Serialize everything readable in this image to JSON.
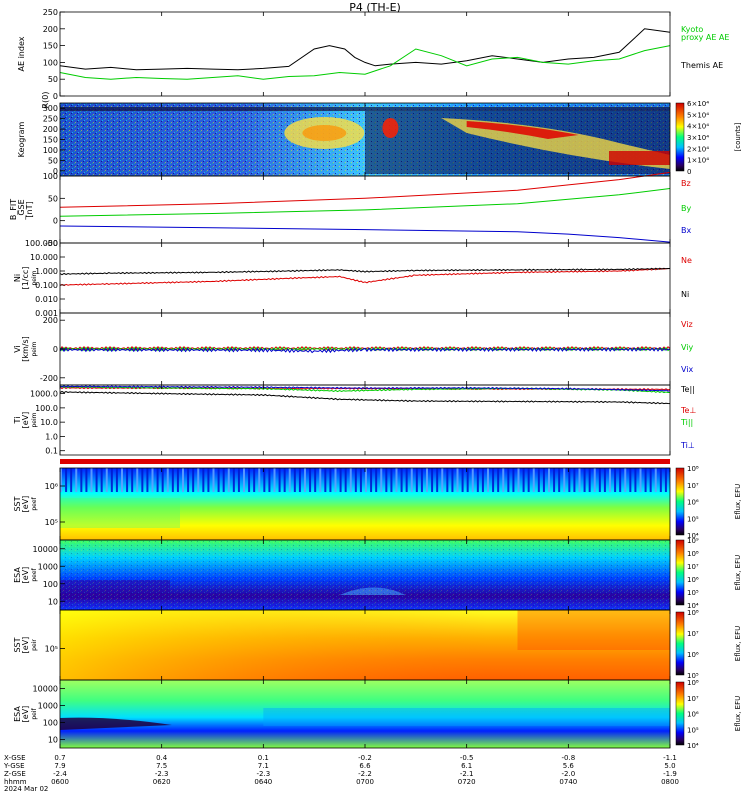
{
  "chart_data": {
    "type": "line",
    "title": "P4 (TH-E)",
    "time_axis": {
      "ticks": [
        "0600",
        "0620",
        "0640",
        "0700",
        "0720",
        "0740",
        "0800"
      ],
      "rows": [
        {
          "label": "X-GSE",
          "values": [
            "0.7",
            "0.4",
            "0.1",
            "-0.2",
            "-0.5",
            "-0.8",
            "-1.1"
          ]
        },
        {
          "label": "Y-GSE",
          "values": [
            "7.9",
            "7.5",
            "7.1",
            "6.6",
            "6.1",
            "5.6",
            "5.0"
          ]
        },
        {
          "label": "Z-GSE",
          "values": [
            "-2.4",
            "-2.3",
            "-2.3",
            "-2.2",
            "-2.1",
            "-2.0",
            "-1.9"
          ]
        },
        {
          "label": "hhmm",
          "values": [
            "0600",
            "0620",
            "0640",
            "0700",
            "0720",
            "0740",
            "0800"
          ]
        }
      ],
      "date": "2024 Mar 02"
    },
    "panels": [
      {
        "id": "ae",
        "ylabel": "AE index",
        "yticks": [
          "250",
          "200",
          "150",
          "100",
          "50",
          "0"
        ],
        "ylim": [
          0,
          250
        ],
        "series": [
          {
            "name": "Themis AE",
            "color": "#000000",
            "x": [
              0,
              5,
              10,
              15,
              20,
              25,
              30,
              35,
              40,
              45,
              50,
              53,
              56,
              58,
              60,
              62,
              65,
              70,
              75,
              80,
              85,
              90,
              95,
              100,
              105,
              110,
              115,
              120
            ],
            "y": [
              90,
              80,
              85,
              78,
              80,
              82,
              80,
              78,
              82,
              88,
              140,
              150,
              140,
              115,
              100,
              90,
              95,
              100,
              95,
              105,
              120,
              110,
              100,
              110,
              115,
              130,
              200,
              190
            ]
          },
          {
            "name": "Kyoto proxy AE",
            "color": "#00cc00",
            "x": [
              0,
              5,
              10,
              15,
              20,
              25,
              30,
              35,
              40,
              45,
              50,
              55,
              60,
              65,
              70,
              75,
              80,
              85,
              90,
              95,
              100,
              105,
              110,
              115,
              120
            ],
            "y": [
              70,
              55,
              50,
              55,
              52,
              50,
              55,
              60,
              50,
              58,
              60,
              70,
              65,
              90,
              140,
              120,
              90,
              110,
              115,
              100,
              95,
              105,
              110,
              135,
              150
            ]
          }
        ]
      },
      {
        "id": "keogram",
        "ylabel": "Keogram",
        "ylabel2": "R(0)",
        "yticks": [
          "300",
          "250",
          "200",
          "150",
          "100",
          "50",
          "0"
        ],
        "colorbar": {
          "label": "[counts]",
          "ticks": [
            "6×10⁴",
            "5×10⁴",
            "4×10⁴",
            "3×10⁴",
            "2×10⁴",
            "1×10⁴",
            "0"
          ]
        }
      },
      {
        "id": "bfield",
        "ylabel": "B_FIT\n_GSE\n[nT]",
        "yticks": [
          "100",
          "50",
          "0",
          "-50"
        ],
        "ylim": [
          -50,
          100
        ],
        "series": [
          {
            "name": "Bz",
            "color": "#dd0000",
            "x": [
              0,
              30,
              60,
              90,
              100,
              110,
              120
            ],
            "y": [
              30,
              38,
              50,
              68,
              80,
              92,
              108
            ]
          },
          {
            "name": "By",
            "color": "#00cc00",
            "x": [
              0,
              30,
              60,
              90,
              100,
              110,
              120
            ],
            "y": [
              10,
              16,
              24,
              38,
              48,
              58,
              72
            ]
          },
          {
            "name": "Bx",
            "color": "#0000cc",
            "x": [
              0,
              30,
              60,
              90,
              100,
              110,
              120
            ],
            "y": [
              -12,
              -16,
              -20,
              -25,
              -30,
              -38,
              -48
            ]
          }
        ]
      },
      {
        "id": "density",
        "ylabel": "Ni\n[1/cc]",
        "ylabel_small": "peim",
        "yticks": [
          "100.000",
          "10.000",
          "1.000",
          "0.100",
          "0.010",
          "0.001"
        ],
        "log": true,
        "ylim": [
          0.001,
          100
        ],
        "series": [
          {
            "name": "Ne",
            "color": "#dd0000",
            "x": [
              0,
              10,
              30,
              45,
              55,
              60,
              70,
              90,
              110,
              120
            ],
            "y": [
              0.1,
              0.12,
              0.18,
              0.3,
              0.4,
              0.15,
              0.5,
              0.8,
              1.0,
              1.5
            ]
          },
          {
            "name": "Ni",
            "color": "#000000",
            "x": [
              0,
              10,
              30,
              45,
              55,
              60,
              70,
              90,
              110,
              120
            ],
            "y": [
              0.6,
              0.7,
              0.8,
              1.0,
              1.2,
              0.9,
              1.1,
              1.2,
              1.3,
              1.5
            ]
          }
        ]
      },
      {
        "id": "velocity",
        "ylabel": "Vi\n[km/s]",
        "ylabel_small": "peim",
        "yticks": [
          "200",
          "0",
          "-200"
        ],
        "ylim": [
          -250,
          250
        ],
        "series": [
          {
            "name": "Viz",
            "color": "#dd0000",
            "x": [
              0,
              120
            ],
            "y": [
              5,
              5
            ]
          },
          {
            "name": "Viy",
            "color": "#00cc00",
            "x": [
              0,
              120
            ],
            "y": [
              0,
              0
            ]
          },
          {
            "name": "Vix",
            "color": "#0000cc",
            "x": [
              0,
              40,
              50,
              60,
              120
            ],
            "y": [
              -5,
              -8,
              -15,
              -5,
              -3
            ]
          }
        ]
      },
      {
        "id": "temperature",
        "ylabel": "Ti\n[eV]",
        "ylabel_small": "peim",
        "yticks": [
          "1000.0",
          "100.0",
          "10.0",
          "1.0",
          "0.1"
        ],
        "log": true,
        "ylim": [
          0.05,
          4000
        ],
        "series": [
          {
            "name": "Te||",
            "color": "#000000",
            "x": [
              0,
              20,
              40,
              55,
              70,
              90,
              110,
              120
            ],
            "y": [
              1300,
              1000,
              800,
              400,
              300,
              280,
              260,
              200
            ]
          },
          {
            "name": "Te⊥",
            "color": "#dd0000",
            "x": [
              0,
              120
            ],
            "y": [
              2500,
              2000
            ]
          },
          {
            "name": "Ti||",
            "color": "#00cc00",
            "x": [
              0,
              20,
              40,
              55,
              70,
              90,
              110,
              120
            ],
            "y": [
              3000,
              2500,
              2200,
              1500,
              2000,
              2300,
              1800,
              1200
            ]
          },
          {
            "name": "Ti⊥",
            "color": "#0000cc",
            "x": [
              0,
              40,
              60,
              80,
              100,
              120
            ],
            "y": [
              3200,
              2800,
              2400,
              2500,
              2200,
              1600
            ]
          }
        ]
      },
      {
        "id": "sst_e",
        "ylabel": "SST\n[eV]",
        "ylabel_small": "peef",
        "yticks": [
          "10⁶",
          "10⁵"
        ],
        "colorbar": {
          "label": "Eflux, EFU",
          "ticks": [
            "10⁸",
            "10⁷",
            "10⁶",
            "10⁵",
            "10⁴"
          ]
        }
      },
      {
        "id": "esa_e",
        "ylabel": "ESA\n[eV]",
        "ylabel_small": "peef",
        "yticks": [
          "10000",
          "1000",
          "100",
          "10"
        ],
        "colorbar": {
          "label": "Eflux, EFU",
          "ticks": [
            "10⁹",
            "10⁸",
            "10⁷",
            "10⁶",
            "10⁵",
            "10⁴"
          ]
        }
      },
      {
        "id": "sst_i",
        "ylabel": "SST\n[eV]",
        "ylabel_small": "peir",
        "yticks": [
          "10⁵"
        ],
        "colorbar": {
          "label": "Eflux, EFU",
          "ticks": [
            "10⁸",
            "10⁷",
            "10⁶",
            "10⁵"
          ]
        }
      },
      {
        "id": "esa_i",
        "ylabel": "ESA\n[eV]",
        "ylabel_small": "peif",
        "yticks": [
          "10000",
          "1000",
          "100",
          "10"
        ],
        "colorbar": {
          "label": "Eflux, EFU",
          "ticks": [
            "10⁸",
            "10⁷",
            "10⁶",
            "10⁵",
            "10⁴"
          ]
        }
      }
    ],
    "colors": {
      "red": "#dd0000",
      "green": "#00cc00",
      "blue": "#0000cc"
    }
  }
}
